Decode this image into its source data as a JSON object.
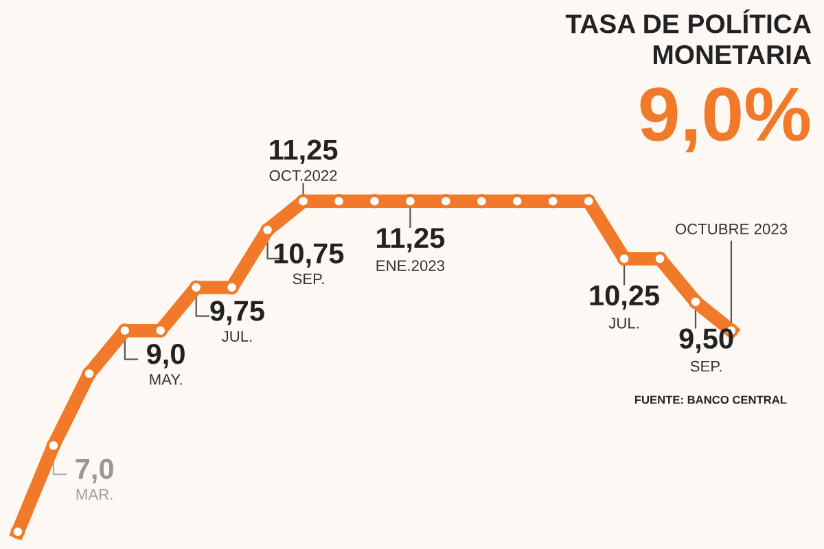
{
  "chart_data": {
    "type": "line",
    "title": "TASA DE POLÍTICA\nMONETARIA",
    "categories": [
      null,
      null,
      null,
      null,
      null,
      null,
      null,
      null,
      null,
      null,
      null,
      null,
      null,
      null,
      null,
      null,
      null,
      null,
      null,
      null,
      null
    ],
    "series": [
      {
        "color": "#f07a2a",
        "values": [
          5.5,
          7.0,
          8.25,
          9.0,
          9.0,
          9.75,
          9.75,
          10.75,
          11.25,
          11.25,
          11.25,
          11.25,
          11.25,
          11.25,
          11.25,
          11.25,
          11.25,
          10.25,
          10.25,
          9.5,
          9.0
        ],
        "value_labels": [
          null,
          "7,0",
          null,
          "9,0",
          null,
          "9,75",
          null,
          "10,75",
          "11,25",
          null,
          null,
          "11,25",
          null,
          null,
          null,
          null,
          null,
          "10,25",
          null,
          "9,50",
          "9,0%"
        ]
      }
    ],
    "marker": "circle",
    "line_style": "solid",
    "legend": false,
    "annotations": [
      "MAR.",
      "MAY.",
      "JUL.",
      "SEP.",
      "OCT.2022",
      "ENE.2023",
      "JUL.",
      "SEP.",
      "OCTUBRE 2023",
      "FUENTE: BANCO CENTRAL"
    ]
  }
}
